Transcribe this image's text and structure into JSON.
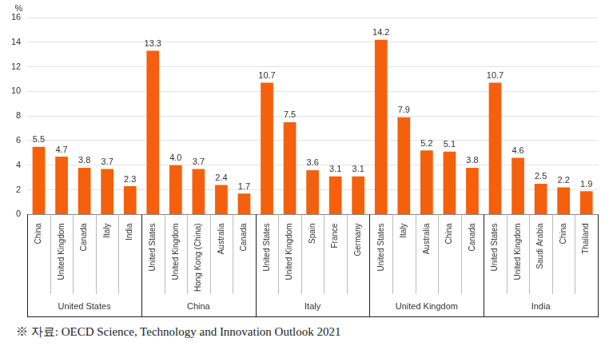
{
  "chart_data": {
    "type": "bar",
    "y_label": "%",
    "categories": [
      "China",
      "United Kingdom",
      "Canada",
      "Italy",
      "India",
      "United States",
      "United Kingdom",
      "Hong Kong (China)",
      "Australia",
      "Canada",
      "United States",
      "United Kingdom",
      "Spain",
      "France",
      "Germany",
      "United States",
      "Italy",
      "Australia",
      "China",
      "Canada",
      "United States",
      "United Kingdom",
      "Saudi Arabia",
      "China",
      "Thailand"
    ],
    "groups": [
      "United States",
      "United States",
      "United States",
      "United States",
      "United States",
      "China",
      "China",
      "China",
      "China",
      "China",
      "Italy",
      "Italy",
      "Italy",
      "Italy",
      "Italy",
      "United Kingdom",
      "United Kingdom",
      "United Kingdom",
      "United Kingdom",
      "United Kingdom",
      "India",
      "India",
      "India",
      "India",
      "India"
    ],
    "values": [
      5.5,
      4.7,
      3.8,
      3.7,
      2.3,
      13.3,
      4.0,
      3.7,
      2.4,
      1.7,
      10.7,
      7.5,
      3.6,
      3.1,
      3.1,
      14.2,
      7.9,
      5.2,
      5.1,
      3.8,
      10.7,
      4.6,
      2.5,
      2.2,
      1.9
    ],
    "value_labels": [
      "5.5",
      "4.7",
      "3.8",
      "3.7",
      "2.3",
      "13.3",
      "4.0",
      "3.7",
      "2.4",
      "1.7",
      "10.7",
      "7.5",
      "3.6",
      "3.1",
      "3.1",
      "14.2",
      "7.9",
      "5.2",
      "5.1",
      "3.8",
      "10.7",
      "4.6",
      "2.5",
      "2.2",
      "1.9"
    ],
    "color": "#f4600c",
    "ylim": [
      0,
      16
    ],
    "yticks": [
      0,
      2,
      4,
      6,
      8,
      10,
      12,
      14,
      16
    ],
    "grid": true,
    "data_labels": true,
    "note": "※ 자료: OECD Science, Technology and Innovation Outlook 2021"
  }
}
